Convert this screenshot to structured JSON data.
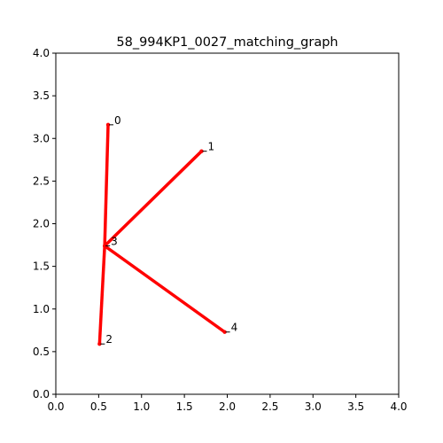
{
  "chart_data": {
    "type": "graph",
    "title": "58_994KP1_0027_matching_graph",
    "xlabel": "",
    "ylabel": "",
    "xlim": [
      0.0,
      4.0
    ],
    "ylim": [
      0.0,
      4.0
    ],
    "x_ticks": [
      "0.0",
      "0.5",
      "1.0",
      "1.5",
      "2.0",
      "2.5",
      "3.0",
      "3.5",
      "4.0"
    ],
    "y_ticks": [
      "0.0",
      "0.5",
      "1.0",
      "1.5",
      "2.0",
      "2.5",
      "3.0",
      "3.5",
      "4.0"
    ],
    "grid": false,
    "edge_color": "#ff0000",
    "node_color": "#ff0000",
    "nodes": [
      {
        "id": "0",
        "x": 0.61,
        "y": 3.16
      },
      {
        "id": "1",
        "x": 1.7,
        "y": 2.85
      },
      {
        "id": "2",
        "x": 0.51,
        "y": 0.59
      },
      {
        "id": "3",
        "x": 0.57,
        "y": 1.74
      },
      {
        "id": "4",
        "x": 1.97,
        "y": 0.73
      }
    ],
    "edges": [
      [
        "3",
        "0"
      ],
      [
        "3",
        "1"
      ],
      [
        "3",
        "2"
      ],
      [
        "3",
        "4"
      ]
    ]
  }
}
